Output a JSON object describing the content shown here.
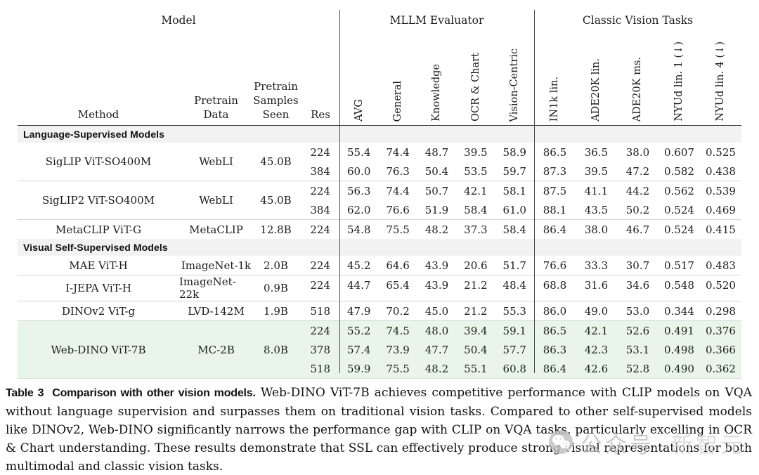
{
  "table": {
    "header": {
      "groups": {
        "model": "Model",
        "mllm": "MLLM Evaluator",
        "classic": "Classic Vision Tasks"
      },
      "model_cols": {
        "method": "Method",
        "pretrain_data": "Pretrain\nData",
        "samples": "Pretrain\nSamples\nSeen",
        "res": "Res"
      },
      "mllm_cols": [
        "AVG",
        "General",
        "Knowledge",
        "OCR & Chart",
        "Vision-Centric"
      ],
      "classic_cols": [
        "IN1k lin.",
        "ADE20K lin.",
        "ADE20K ms.",
        "NYUd lin. 1 (↓)",
        "NYUd lin. 4 (↓)"
      ]
    },
    "sections": [
      {
        "label": "Language-Supervised Models",
        "rows": [
          {
            "method": "SigLIP ViT-SO400M",
            "pretrain_data": "WebLI",
            "samples": "45.0B",
            "highlight": false,
            "subrows": [
              {
                "res": "224",
                "values": [
                  "55.4",
                  "74.4",
                  "48.7",
                  "39.5",
                  "58.9",
                  "86.5",
                  "36.5",
                  "38.0",
                  "0.607",
                  "0.525"
                ]
              },
              {
                "res": "384",
                "values": [
                  "60.0",
                  "76.3",
                  "50.4",
                  "53.5",
                  "59.7",
                  "87.3",
                  "39.5",
                  "47.2",
                  "0.582",
                  "0.438"
                ]
              }
            ]
          },
          {
            "method": "SigLIP2 ViT-SO400M",
            "pretrain_data": "WebLI",
            "samples": "45.0B",
            "highlight": false,
            "subrows": [
              {
                "res": "224",
                "values": [
                  "56.3",
                  "74.4",
                  "50.7",
                  "42.1",
                  "58.1",
                  "87.5",
                  "41.1",
                  "44.2",
                  "0.562",
                  "0.539"
                ]
              },
              {
                "res": "384",
                "values": [
                  "62.0",
                  "76.6",
                  "51.9",
                  "58.4",
                  "61.0",
                  "88.1",
                  "43.5",
                  "50.2",
                  "0.524",
                  "0.469"
                ]
              }
            ]
          },
          {
            "method": "MetaCLIP ViT-G",
            "pretrain_data": "MetaCLIP",
            "samples": "12.8B",
            "highlight": false,
            "subrows": [
              {
                "res": "224",
                "values": [
                  "54.8",
                  "75.5",
                  "48.2",
                  "37.3",
                  "58.4",
                  "86.4",
                  "38.0",
                  "46.7",
                  "0.524",
                  "0.415"
                ]
              }
            ]
          }
        ]
      },
      {
        "label": "Visual Self-Supervised Models",
        "rows": [
          {
            "method": "MAE ViT-H",
            "pretrain_data": "ImageNet-1k",
            "samples": "2.0B",
            "highlight": false,
            "subrows": [
              {
                "res": "224",
                "values": [
                  "45.2",
                  "64.6",
                  "43.9",
                  "20.6",
                  "51.7",
                  "76.6",
                  "33.3",
                  "30.7",
                  "0.517",
                  "0.483"
                ]
              }
            ]
          },
          {
            "method": "I-JEPA ViT-H",
            "pretrain_data": "ImageNet-22k",
            "samples": "0.9B",
            "highlight": false,
            "subrows": [
              {
                "res": "224",
                "values": [
                  "44.7",
                  "65.4",
                  "43.9",
                  "21.2",
                  "48.4",
                  "68.8",
                  "31.6",
                  "34.6",
                  "0.548",
                  "0.520"
                ]
              }
            ]
          },
          {
            "method": "DINOv2 ViT-g",
            "pretrain_data": "LVD-142M",
            "samples": "1.9B",
            "highlight": false,
            "subrows": [
              {
                "res": "518",
                "values": [
                  "47.9",
                  "70.2",
                  "45.0",
                  "21.2",
                  "55.3",
                  "86.0",
                  "49.0",
                  "53.0",
                  "0.344",
                  "0.298"
                ]
              }
            ]
          },
          {
            "method": "Web-DINO ViT-7B",
            "pretrain_data": "MC-2B",
            "samples": "8.0B",
            "highlight": true,
            "subrows": [
              {
                "res": "224",
                "values": [
                  "55.2",
                  "74.5",
                  "48.0",
                  "39.4",
                  "59.1",
                  "86.5",
                  "42.1",
                  "52.6",
                  "0.491",
                  "0.376"
                ]
              },
              {
                "res": "378",
                "values": [
                  "57.4",
                  "73.9",
                  "47.7",
                  "50.4",
                  "57.7",
                  "86.3",
                  "42.3",
                  "53.1",
                  "0.498",
                  "0.366"
                ]
              },
              {
                "res": "518",
                "values": [
                  "59.9",
                  "75.5",
                  "48.2",
                  "55.1",
                  "60.8",
                  "86.4",
                  "42.6",
                  "52.8",
                  "0.490",
                  "0.362"
                ]
              }
            ]
          }
        ]
      }
    ]
  },
  "caption": {
    "title": "Table 3  Comparison with other vision models.",
    "body": " Web-DINO ViT-7B achieves competitive performance with CLIP models on VQA without language supervision and surpasses them on traditional vision tasks. Compared to other self-supervised models like DINOv2, Web-DINO significantly narrows the performance gap with CLIP on VQA tasks, particularly excelling in OCR & Chart understanding. These results demonstrate that SSL can effectively produce strong visual representations for both multimodal and classic vision tasks."
  },
  "watermark": {
    "label": "公众号",
    "brand": "新智元"
  },
  "colors": {
    "highlight_row": "#e9f5e9",
    "section_band": "#f2f2f2",
    "rule": "#3a3a3a"
  }
}
